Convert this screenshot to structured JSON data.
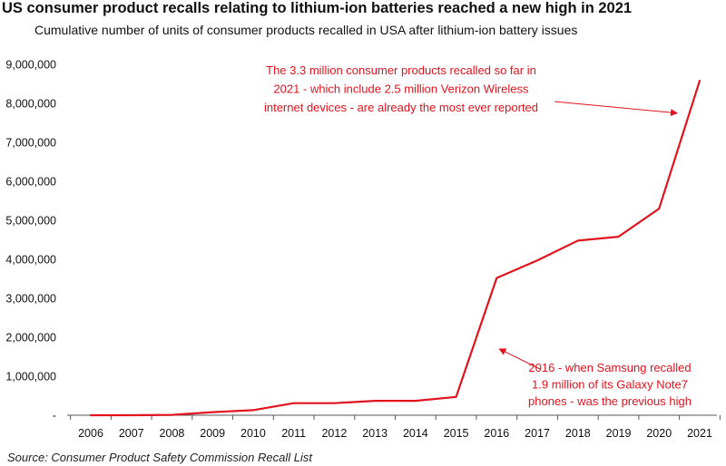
{
  "colors": {
    "line": "#e0131e",
    "annotation": "#e0131e",
    "axis": "#555555",
    "text": "#111111"
  },
  "source": "Source: Consumer Product Safety Commission Recall List",
  "chart_data": {
    "type": "line",
    "title": "US consumer product recalls relating to lithium-ion batteries reached a new high in 2021",
    "subtitle": "Cumulative number of units of consumer products recalled in USA after lithium-ion battery issues",
    "xlabel": "",
    "ylabel": "",
    "grid": false,
    "ylim": [
      0,
      9000000
    ],
    "categories": [
      "2006",
      "2007",
      "2008",
      "2009",
      "2010",
      "2011",
      "2012",
      "2013",
      "2014",
      "2015",
      "2016",
      "2017",
      "2018",
      "2019",
      "2020",
      "2021"
    ],
    "yticks": [
      {
        "value": 0,
        "label": "-"
      },
      {
        "value": 1000000,
        "label": "1,000,000"
      },
      {
        "value": 2000000,
        "label": "2,000,000"
      },
      {
        "value": 3000000,
        "label": "3,000,000"
      },
      {
        "value": 4000000,
        "label": "4,000,000"
      },
      {
        "value": 5000000,
        "label": "5,000,000"
      },
      {
        "value": 6000000,
        "label": "6,000,000"
      },
      {
        "value": 7000000,
        "label": "7,000,000"
      },
      {
        "value": 8000000,
        "label": "8,000,000"
      },
      {
        "value": 9000000,
        "label": "9,000,000"
      }
    ],
    "series": [
      {
        "name": "Cumulative units recalled",
        "values": [
          0,
          0,
          10000,
          80000,
          130000,
          310000,
          310000,
          370000,
          370000,
          470000,
          3520000,
          3970000,
          4480000,
          4580000,
          5300000,
          8580000
        ]
      }
    ],
    "annotations": [
      {
        "lines": [
          "The 3.3 million consumer products recalled so far in",
          "2021 - which include 2.5 million Verizon Wireless",
          "internet devices - are already the most ever reported"
        ],
        "points_to": {
          "category": "2021",
          "value": 7750000
        }
      },
      {
        "lines": [
          "2016 - when Samsung recalled",
          "1.9 million of its Galaxy Note7",
          "phones - was the previous high"
        ],
        "points_to": {
          "category": "2016",
          "value": 1700000
        }
      }
    ]
  }
}
